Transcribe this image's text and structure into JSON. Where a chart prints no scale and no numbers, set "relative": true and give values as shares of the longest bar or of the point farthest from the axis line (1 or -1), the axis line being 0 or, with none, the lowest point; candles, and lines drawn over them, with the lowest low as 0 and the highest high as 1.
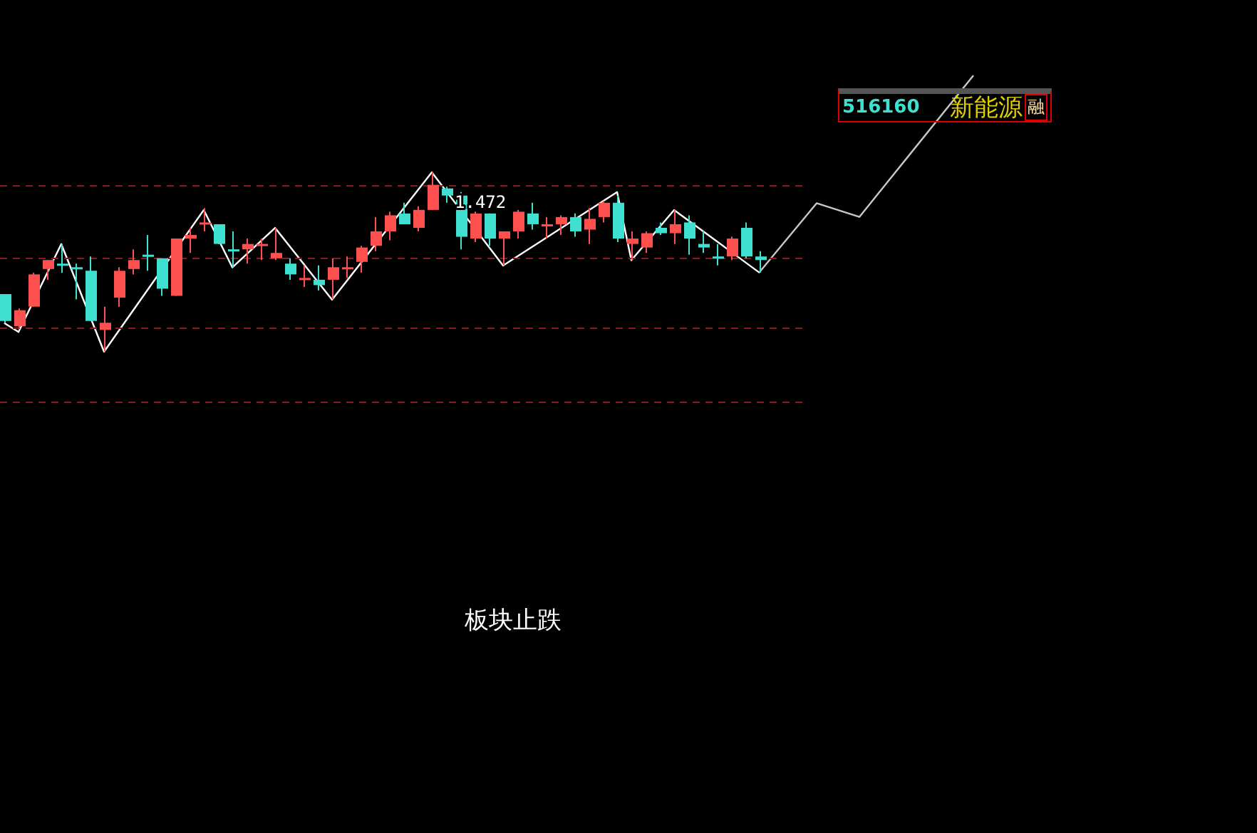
{
  "chart_data": [
    {
      "type": "candlestick",
      "relative": true,
      "legend": false,
      "categories": [
        null,
        null,
        null,
        null,
        null,
        null,
        null,
        null,
        null,
        null,
        null,
        null,
        null,
        null,
        null,
        null,
        null,
        null,
        null,
        null,
        null,
        null,
        null,
        null,
        null,
        null,
        null,
        null,
        null,
        null,
        null,
        null,
        null,
        null,
        null,
        null,
        null,
        null,
        null,
        null,
        null,
        null,
        null,
        null,
        null,
        null,
        null,
        null,
        null,
        null,
        null,
        null,
        null,
        null
      ],
      "ohlc": [
        [
          0.32,
          0.32,
          0.16,
          0.17
        ],
        [
          0.14,
          0.24,
          0.13,
          0.23
        ],
        [
          0.25,
          0.44,
          0.25,
          0.43
        ],
        [
          0.46,
          0.51,
          0.4,
          0.51
        ],
        [
          0.49,
          0.6,
          0.44,
          0.48
        ],
        [
          0.47,
          0.49,
          0.29,
          0.46
        ],
        [
          0.45,
          0.53,
          0.17,
          0.17
        ],
        [
          0.12,
          0.25,
          0,
          0.16
        ],
        [
          0.3,
          0.47,
          0.25,
          0.45
        ],
        [
          0.46,
          0.57,
          0.43,
          0.51
        ],
        [
          0.54,
          0.65,
          0.45,
          0.53
        ],
        [
          0.52,
          0.52,
          0.31,
          0.35
        ],
        [
          0.31,
          0.63,
          0.31,
          0.63
        ],
        [
          0.63,
          0.69,
          0.55,
          0.65
        ],
        [
          0.71,
          0.8,
          0.67,
          0.72
        ],
        [
          0.71,
          0.71,
          0.6,
          0.6
        ],
        [
          0.57,
          0.67,
          0.47,
          0.56
        ],
        [
          0.57,
          0.63,
          0.49,
          0.6
        ],
        [
          0.59,
          0.63,
          0.51,
          0.6
        ],
        [
          0.52,
          0.69,
          0.51,
          0.55
        ],
        [
          0.49,
          0.52,
          0.4,
          0.43
        ],
        [
          0.4,
          0.48,
          0.36,
          0.41
        ],
        [
          0.4,
          0.48,
          0.34,
          0.37
        ],
        [
          0.4,
          0.52,
          0.29,
          0.47
        ],
        [
          0.46,
          0.53,
          0.41,
          0.47
        ],
        [
          0.5,
          0.59,
          0.44,
          0.58
        ],
        [
          0.59,
          0.75,
          0.56,
          0.67
        ],
        [
          0.67,
          0.78,
          0.62,
          0.76
        ],
        [
          0.77,
          0.83,
          0.71,
          0.71
        ],
        [
          0.69,
          0.81,
          0.67,
          0.79
        ],
        [
          0.79,
          1.0,
          0.79,
          0.93
        ],
        [
          0.91,
          0.92,
          0.83,
          0.87
        ],
        [
          0.87,
          0.89,
          0.57,
          0.64
        ],
        [
          0.63,
          0.78,
          0.61,
          0.77
        ],
        [
          0.77,
          0.77,
          0.59,
          0.63
        ],
        [
          0.63,
          0.67,
          0.48,
          0.67
        ],
        [
          0.67,
          0.79,
          0.63,
          0.78
        ],
        [
          0.77,
          0.83,
          0.68,
          0.71
        ],
        [
          0.7,
          0.75,
          0.63,
          0.71
        ],
        [
          0.71,
          0.76,
          0.65,
          0.75
        ],
        [
          0.75,
          0.77,
          0.64,
          0.67
        ],
        [
          0.68,
          0.8,
          0.6,
          0.74
        ],
        [
          0.75,
          0.84,
          0.72,
          0.83
        ],
        [
          0.83,
          0.87,
          0.61,
          0.63
        ],
        [
          0.6,
          0.67,
          0.51,
          0.63
        ],
        [
          0.58,
          0.67,
          0.55,
          0.66
        ],
        [
          0.69,
          0.72,
          0.65,
          0.66
        ],
        [
          0.66,
          0.79,
          0.6,
          0.71
        ],
        [
          0.72,
          0.76,
          0.54,
          0.63
        ],
        [
          0.6,
          0.67,
          0.55,
          0.58
        ],
        [
          0.53,
          0.6,
          0.48,
          0.52
        ],
        [
          0.53,
          0.64,
          0.51,
          0.63
        ],
        [
          0.69,
          0.72,
          0.52,
          0.53
        ],
        [
          0.53,
          0.56,
          0.44,
          0.51
        ]
      ],
      "colors": [
        "#40e0d0",
        "#ff5050",
        "#ff5050",
        "#ff5050",
        "#40e0d0",
        "#40e0d0",
        "#40e0d0",
        "#ff5050",
        "#ff5050",
        "#ff5050",
        "#40e0d0",
        "#40e0d0",
        "#ff5050",
        "#ff5050",
        "#ff5050",
        "#40e0d0",
        "#40e0d0",
        "#ff5050",
        "#ff5050",
        "#ff5050",
        "#40e0d0",
        "#ff5050",
        "#40e0d0",
        "#ff5050",
        "#ff5050",
        "#ff5050",
        "#ff5050",
        "#ff5050",
        "#40e0d0",
        "#ff5050",
        "#ff5050",
        "#40e0d0",
        "#40e0d0",
        "#ff5050",
        "#40e0d0",
        "#ff5050",
        "#ff5050",
        "#40e0d0",
        "#ff5050",
        "#ff5050",
        "#40e0d0",
        "#ff5050",
        "#ff5050",
        "#40e0d0",
        "#ff5050",
        "#ff5050",
        "#40e0d0",
        "#ff5050",
        "#40e0d0",
        "#40e0d0",
        "#40e0d0",
        "#ff5050",
        "#40e0d0",
        "#40e0d0"
      ],
      "ref_lines": [
        {
          "axis": "y",
          "value": 0.93,
          "color": "#8b1a1a",
          "line_style": "dashed"
        },
        {
          "axis": "y",
          "value": 0.52,
          "color": "#8b1a1a",
          "line_style": "dashed"
        },
        {
          "axis": "y",
          "value": 0.13,
          "color": "#8b1a1a",
          "line_style": "dashed"
        },
        {
          "axis": "y",
          "value": -0.28,
          "color": "#8b1a1a",
          "line_style": "dashed"
        }
      ],
      "annotations": [
        "1.472",
        "516160",
        "新能源",
        "融",
        "板块止跌"
      ]
    },
    {
      "type": "line",
      "relative": true,
      "legend": false,
      "categories": [
        null,
        null,
        null,
        null,
        null,
        null,
        null,
        null,
        null,
        null,
        null,
        null,
        null,
        null,
        null,
        null,
        null,
        null,
        null,
        null,
        null,
        null,
        null,
        null,
        null,
        null,
        null,
        null,
        null,
        null,
        null,
        null,
        null,
        null,
        null,
        null,
        null,
        null,
        null,
        null,
        null,
        null,
        null,
        null,
        null,
        null,
        null,
        null,
        null,
        null,
        null,
        null,
        null,
        null
      ],
      "series": [
        {
          "color": "#ffffff",
          "values": [
            0.16,
            0.11,
            null,
            null,
            0.6,
            null,
            null,
            0,
            null,
            null,
            null,
            null,
            null,
            null,
            0.79,
            null,
            0.47,
            null,
            null,
            0.69,
            null,
            null,
            null,
            0.29,
            null,
            null,
            null,
            null,
            null,
            null,
            1,
            null,
            null,
            null,
            null,
            0.48,
            null,
            null,
            null,
            null,
            null,
            null,
            null,
            0.89,
            0.51,
            null,
            null,
            0.79,
            null,
            null,
            null,
            null,
            null,
            0.44
          ]
        }
      ]
    },
    {
      "type": "line",
      "relative": true,
      "legend": false,
      "categories": [
        null,
        null,
        null,
        null,
        null,
        null,
        null,
        null,
        null,
        null,
        null,
        null,
        null,
        null,
        null,
        null
      ],
      "series": [
        {
          "color": "#c8c8c8",
          "values": [
            0,
            null,
            null,
            null,
            0.35,
            null,
            null,
            0.28,
            null,
            null,
            null,
            null,
            null,
            null,
            null,
            1
          ]
        }
      ]
    }
  ]
}
